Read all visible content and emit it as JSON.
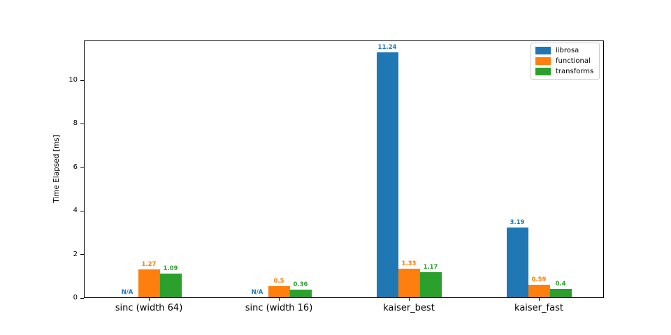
{
  "chart_data": {
    "type": "bar",
    "title": "",
    "xlabel": "",
    "ylabel": "Time Elapsed [ms]",
    "categories": [
      "sinc (width 64)",
      "sinc (width 16)",
      "kaiser_best",
      "kaiser_fast"
    ],
    "series": [
      {
        "name": "librosa",
        "color": "#1f77b4",
        "values": [
          null,
          null,
          11.24,
          3.19
        ],
        "labels": [
          "N/A",
          "N/A",
          "11.24",
          "3.19"
        ]
      },
      {
        "name": "functional",
        "color": "#ff7f0e",
        "values": [
          1.27,
          0.5,
          1.33,
          0.59
        ],
        "labels": [
          "1.27",
          "0.5",
          "1.33",
          "0.59"
        ]
      },
      {
        "name": "transforms",
        "color": "#2ca02c",
        "values": [
          1.09,
          0.36,
          1.17,
          0.4
        ],
        "labels": [
          "1.09",
          "0.36",
          "1.17",
          "0.4"
        ]
      }
    ],
    "na_label": "N/A",
    "ylim": [
      0,
      11.83
    ],
    "yticks": [
      0,
      2,
      4,
      6,
      8,
      10
    ],
    "grid": false,
    "legend_position": "upper right"
  }
}
